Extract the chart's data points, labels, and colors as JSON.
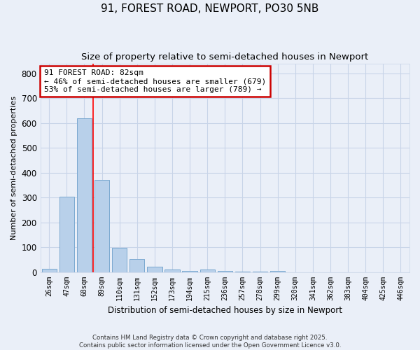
{
  "title1": "91, FOREST ROAD, NEWPORT, PO30 5NB",
  "title2": "Size of property relative to semi-detached houses in Newport",
  "xlabel": "Distribution of semi-detached houses by size in Newport",
  "ylabel": "Number of semi-detached properties",
  "categories": [
    "26sqm",
    "47sqm",
    "68sqm",
    "89sqm",
    "110sqm",
    "131sqm",
    "152sqm",
    "173sqm",
    "194sqm",
    "215sqm",
    "236sqm",
    "257sqm",
    "278sqm",
    "299sqm",
    "320sqm",
    "341sqm",
    "362sqm",
    "383sqm",
    "404sqm",
    "425sqm",
    "446sqm"
  ],
  "values": [
    13,
    303,
    620,
    370,
    98,
    52,
    22,
    10,
    5,
    10,
    5,
    2,
    1,
    5,
    0,
    0,
    0,
    0,
    0,
    0,
    0
  ],
  "bar_color": "#b8d0ea",
  "bar_edge_color": "#7aa8d0",
  "grid_color": "#c8d4e8",
  "background_color": "#eaeff8",
  "red_line_x": 2.5,
  "annotation_text": "91 FOREST ROAD: 82sqm\n← 46% of semi-detached houses are smaller (679)\n53% of semi-detached houses are larger (789) →",
  "annotation_box_color": "#ffffff",
  "annotation_edge_color": "#cc0000",
  "ylim": [
    0,
    840
  ],
  "yticks": [
    0,
    100,
    200,
    300,
    400,
    500,
    600,
    700,
    800
  ],
  "footnote": "Contains HM Land Registry data © Crown copyright and database right 2025.\nContains public sector information licensed under the Open Government Licence v3.0.",
  "title_fontsize": 11,
  "subtitle_fontsize": 9.5,
  "figwidth": 6.0,
  "figheight": 5.0
}
